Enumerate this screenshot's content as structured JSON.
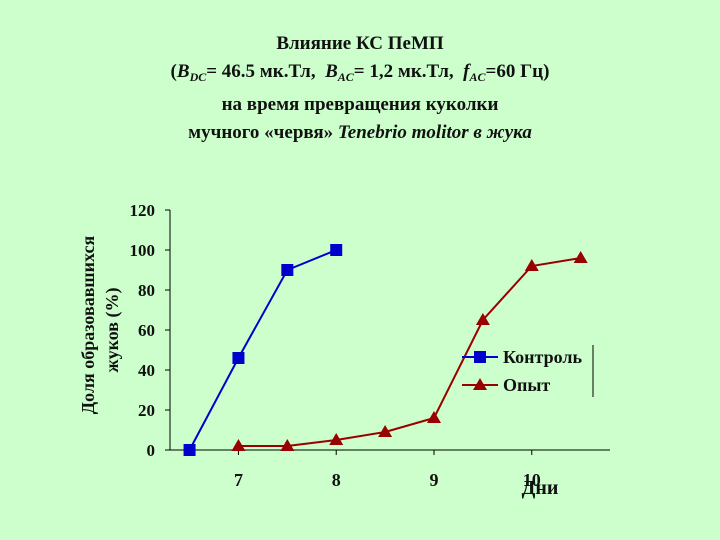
{
  "title": {
    "line1": "Влияние КС ПеМП",
    "line2": {
      "open_paren": "(",
      "b_dc_symbol": "B",
      "b_dc_sub": "DC",
      "b_dc_value": "= 46.5 мк.Тл,",
      "b_ac_symbol": "B",
      "b_ac_sub": "AC",
      "b_ac_value": "= 1,2 мк.Тл,",
      "f_ac_symbol": "f",
      "f_ac_sub": "AC",
      "f_ac_value": "=60 Гц)"
    },
    "line3": "на время превращения куколки",
    "line4_plain": "мучного «червя»",
    "line4_italic": "Tenebrio molitor",
    "line4_end": "в жука"
  },
  "chart_data": {
    "type": "line",
    "ylabel_line1": "Доля образовавшихся",
    "ylabel_line2": "жуков (%)",
    "xlabel": "Дни",
    "ylim": [
      0,
      120
    ],
    "yticks": [
      "0",
      "20",
      "40",
      "60",
      "80",
      "100",
      "120"
    ],
    "xticks": [
      {
        "label": "7",
        "value": 7
      },
      {
        "label": "8",
        "value": 8
      },
      {
        "label": "9",
        "value": 9
      },
      {
        "label": "10",
        "value": 10
      }
    ],
    "xlim": [
      6.3,
      10.8
    ],
    "legend_position": "right",
    "series": [
      {
        "name": "Контроль",
        "color": "#0000cc",
        "marker": "square",
        "x": [
          6.5,
          7.0,
          7.5,
          8.0
        ],
        "y": [
          0,
          46,
          90,
          100
        ]
      },
      {
        "name": "Опыт",
        "color": "#990000",
        "marker": "triangle",
        "x": [
          7.0,
          7.5,
          8.0,
          8.5,
          9.0,
          9.5,
          10.0,
          10.5
        ],
        "y": [
          2,
          2,
          5,
          9,
          16,
          65,
          92,
          96
        ]
      }
    ]
  }
}
